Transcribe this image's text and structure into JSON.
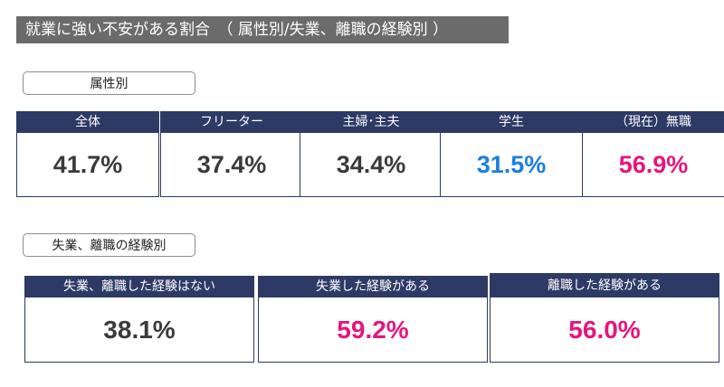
{
  "title": "就業に強い不安がある割合　（ 属性別/失業、離職の経験別 ）",
  "colors": {
    "neutral": "#3a3a3a",
    "blue": "#1a7fe0",
    "pink": "#e4167e",
    "header": "#2e3a66"
  },
  "section1": {
    "label": "属性別",
    "cards": [
      {
        "header": "全体",
        "value": "41.7%",
        "color": "#3a3a3a"
      },
      {
        "header": "フリーター",
        "value": "37.4%",
        "color": "#3a3a3a"
      },
      {
        "header": "主婦･主夫",
        "value": "34.4%",
        "color": "#3a3a3a"
      },
      {
        "header": "学生",
        "value": "31.5%",
        "color": "#1a7fe0"
      },
      {
        "header": "（現在）無職",
        "value": "56.9%",
        "color": "#e4167e"
      }
    ]
  },
  "section2": {
    "label": "失業、離職の経験別",
    "cards": [
      {
        "header": "失業、離職した経験はない",
        "value": "38.1%",
        "color": "#3a3a3a"
      },
      {
        "header": "失業した経験がある",
        "value": "59.2%",
        "color": "#e4167e"
      },
      {
        "header": "離職した経験がある",
        "value": "56.0%",
        "color": "#e4167e"
      }
    ]
  }
}
